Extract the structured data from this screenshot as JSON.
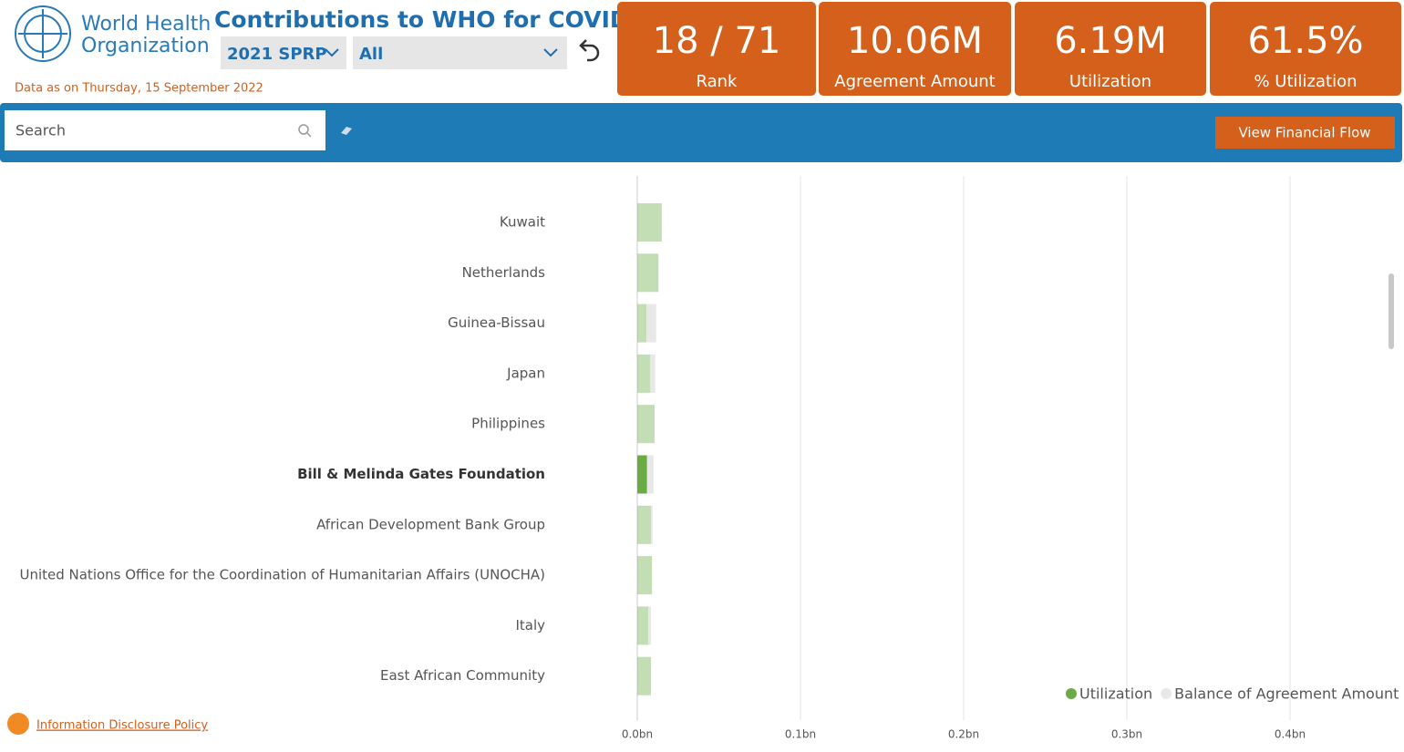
{
  "header": {
    "logo_line1": "World Health",
    "logo_line2": "Organization",
    "title": "Contributions to WHO for COVID",
    "filter1": "2021 SPRP",
    "filter2": "All",
    "date_note": "Data as on Thursday, 15 September 2022"
  },
  "kpis": [
    {
      "value": "18 / 71",
      "label": "Rank"
    },
    {
      "value": "10.06M",
      "label": "Agreement Amount"
    },
    {
      "value": "6.19M",
      "label": "Utilization"
    },
    {
      "value": "61.5%",
      "label": "% Utilization"
    }
  ],
  "toolbar": {
    "search_placeholder": "Search",
    "button": "View Financial Flow"
  },
  "footer": {
    "link": "Information Disclosure Policy"
  },
  "chart_data": {
    "type": "stacked_hbar",
    "categories": [
      "Kuwait",
      "Netherlands",
      "Guinea-Bissau",
      "Japan",
      "Philippines",
      "Bill & Melinda Gates Foundation",
      "African Development Bank Group",
      "United Nations Office for the Coordination of Humanitarian Affairs (UNOCHA)",
      "Italy",
      "East African Community"
    ],
    "series": [
      {
        "name": "Utilization",
        "color": "#6aab46",
        "values": [
          0.015,
          0.013,
          0.0056,
          0.008,
          0.0106,
          0.006,
          0.0084,
          0.009,
          0.0067,
          0.0084
        ]
      },
      {
        "name": "Balance of Agreement Amount",
        "color": "#e8e8e8",
        "values": [
          0,
          0,
          0.006,
          0.003,
          0,
          0.004,
          0.001,
          0,
          0.0017,
          0
        ]
      }
    ],
    "selected": 5,
    "xlim": [
      0,
      0.46
    ],
    "xticks": [
      {
        "value": 0,
        "label": "0.0bn"
      },
      {
        "value": 0.1,
        "label": "0.1bn"
      },
      {
        "value": 0.2,
        "label": "0.2bn"
      },
      {
        "value": 0.3,
        "label": "0.3bn"
      },
      {
        "value": 0.4,
        "label": "0.4bn"
      }
    ],
    "grid": true,
    "legend": "bottom-right"
  }
}
